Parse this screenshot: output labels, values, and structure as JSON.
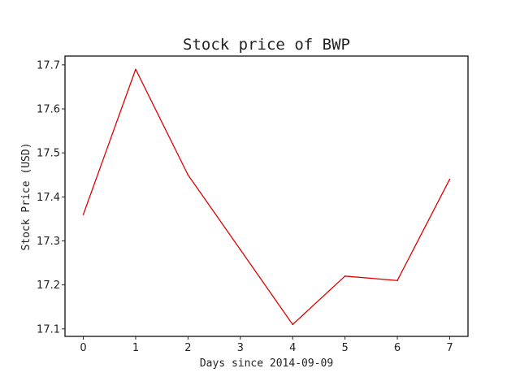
{
  "chart_data": {
    "type": "line",
    "title": "Stock price of BWP",
    "xlabel": "Days since 2014-09-09",
    "ylabel": "Stock Price (USD)",
    "x": [
      0,
      1,
      2,
      3,
      4,
      5,
      6,
      7
    ],
    "series": [
      {
        "values": [
          17.36,
          17.69,
          17.45,
          17.28,
          17.11,
          17.22,
          17.21,
          17.44
        ],
        "color": "#dd0000"
      }
    ],
    "xlim": [
      -0.35,
      7.35
    ],
    "ylim": [
      17.083,
      17.72
    ],
    "xticks": [
      "0",
      "1",
      "2",
      "3",
      "4",
      "5",
      "6",
      "7"
    ],
    "yticks": [
      "17.1",
      "17.2",
      "17.3",
      "17.4",
      "17.5",
      "17.6",
      "17.7"
    ],
    "grid": false
  }
}
